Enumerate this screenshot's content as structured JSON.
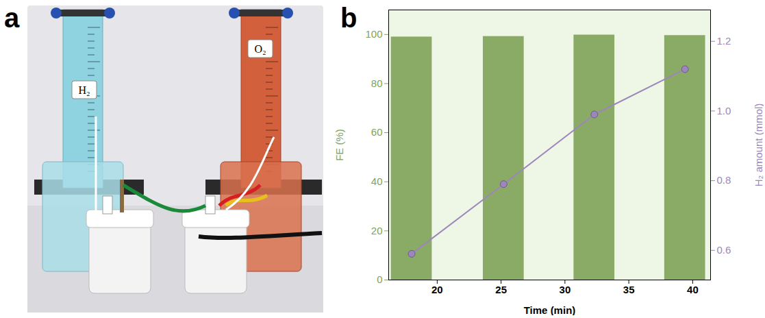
{
  "panel_a": {
    "letter": "a",
    "cylinder_labels": [
      "H₂",
      "O₂"
    ]
  },
  "chart_data": {
    "type": "bar",
    "letter": "b",
    "x_label": "Time (min)",
    "y_label": "FE (%)",
    "y2_label": "H₂ amount (mmol)",
    "x": [
      18,
      25.2,
      32.3,
      39.4
    ],
    "xlim": [
      16.2,
      41.4
    ],
    "xticks": [
      20,
      25,
      30,
      35,
      40
    ],
    "ylim": [
      0,
      110
    ],
    "yticks": [
      0,
      20,
      40,
      60,
      80,
      100
    ],
    "y2lim": [
      0.515,
      1.29
    ],
    "y2ticks": [
      0.6,
      0.8,
      {
        "value": 1,
        "label": "1.0"
      },
      1.2
    ],
    "series": [
      {
        "type": "bar",
        "color": "#8aab66",
        "values": [
          99.0,
          99.2,
          99.8,
          99.6
        ]
      },
      {
        "type": "line",
        "axis": "y2",
        "color": "#9d86bb",
        "marker": "circle",
        "values": [
          0.59,
          0.79,
          0.99,
          1.12
        ]
      }
    ]
  }
}
